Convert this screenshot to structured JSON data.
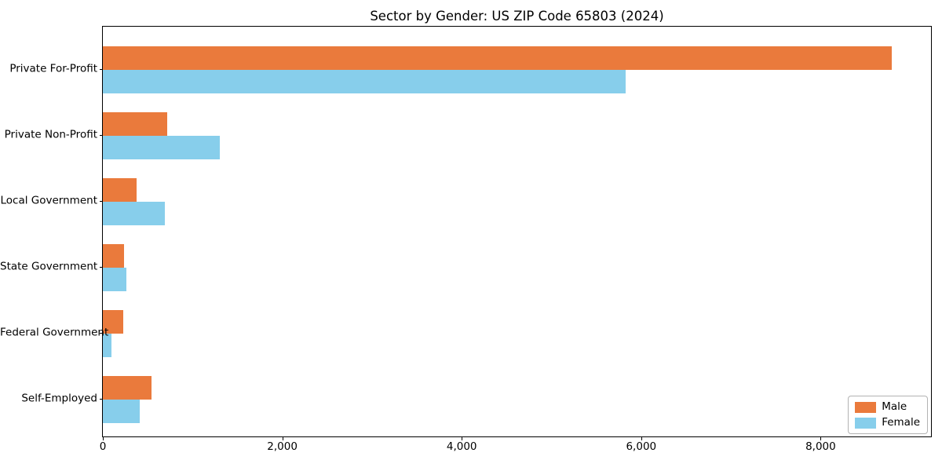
{
  "figure": {
    "background_color": "#ffffff",
    "border_color": "#000000"
  },
  "chart_data": {
    "type": "bar",
    "orientation": "horizontal",
    "title": "Sector by Gender: US ZIP Code 65803 (2024)",
    "xlabel": "",
    "ylabel": "",
    "categories": [
      "Private For-Profit",
      "Private Non-Profit",
      "Local Government",
      "State Government",
      "Federal Government",
      "Self-Employed"
    ],
    "series": [
      {
        "name": "Male",
        "color": "#ea7a3c",
        "values": [
          8790,
          720,
          375,
          240,
          230,
          545
        ]
      },
      {
        "name": "Female",
        "color": "#87ceeb",
        "values": [
          5830,
          1300,
          690,
          260,
          100,
          415
        ]
      }
    ],
    "xlim": [
      0,
      9230
    ],
    "xticks": [
      0,
      2000,
      4000,
      6000,
      8000
    ],
    "xtick_labels": [
      "0",
      "2,000",
      "4,000",
      "6,000",
      "8,000"
    ],
    "grid": false,
    "legend": {
      "position": "lower right",
      "entries": [
        "Male",
        "Female"
      ]
    }
  }
}
